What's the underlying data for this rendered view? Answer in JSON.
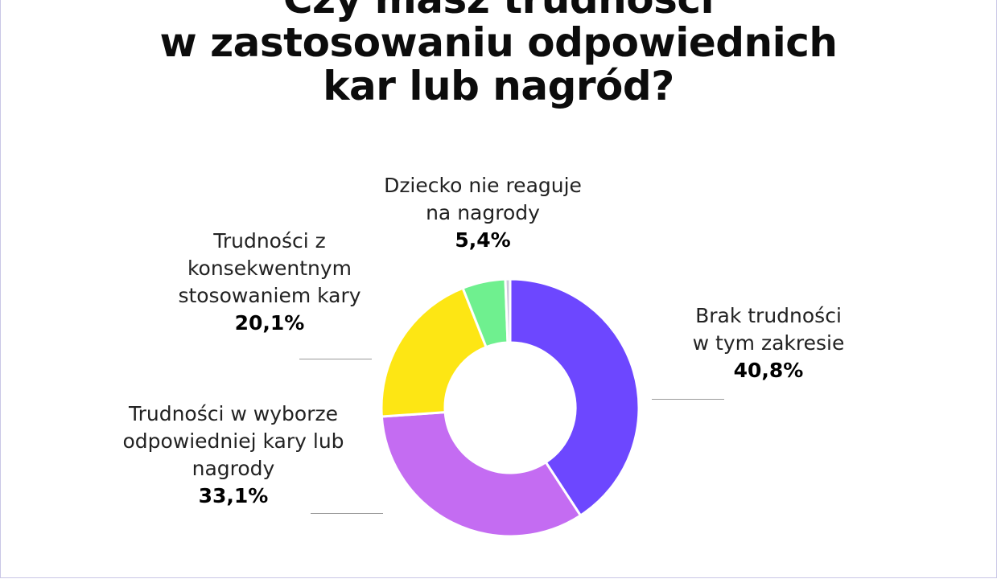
{
  "chart_data": {
    "type": "pie",
    "title_lines": [
      "Czy masz trudności",
      "w zastosowaniu odpowiednich",
      "kar lub nagród?"
    ],
    "series": [
      {
        "category": "Brak trudności w tym zakresie",
        "label_lines": [
          "Brak trudności",
          "w tym zakresie"
        ],
        "value": 40.8,
        "value_label": "40,8%",
        "color": "#6d47ff"
      },
      {
        "category": "Trudności w wyborze odpowiedniej kary lub nagrody",
        "label_lines": [
          "Trudności w wyborze",
          "odpowiedniej kary lub",
          "nagrody"
        ],
        "value": 33.1,
        "value_label": "33,1%",
        "color": "#c46cf2"
      },
      {
        "category": "Trudności z konsekwentnym stosowaniem kary",
        "label_lines": [
          "Trudności z",
          "konsekwentnym",
          "stosowaniem kary"
        ],
        "value": 20.1,
        "value_label": "20,1%",
        "color": "#fde614"
      },
      {
        "category": "Dziecko nie reaguje na nagrody",
        "label_lines": [
          "Dziecko nie reaguje",
          "na nagrody"
        ],
        "value": 5.4,
        "value_label": "5,4%",
        "color": "#6ff08f"
      },
      {
        "category": "other",
        "label_lines": [],
        "value": 0.6,
        "value_label": "",
        "color": "#cfc9dc"
      }
    ],
    "donut": true,
    "legend": "none"
  }
}
